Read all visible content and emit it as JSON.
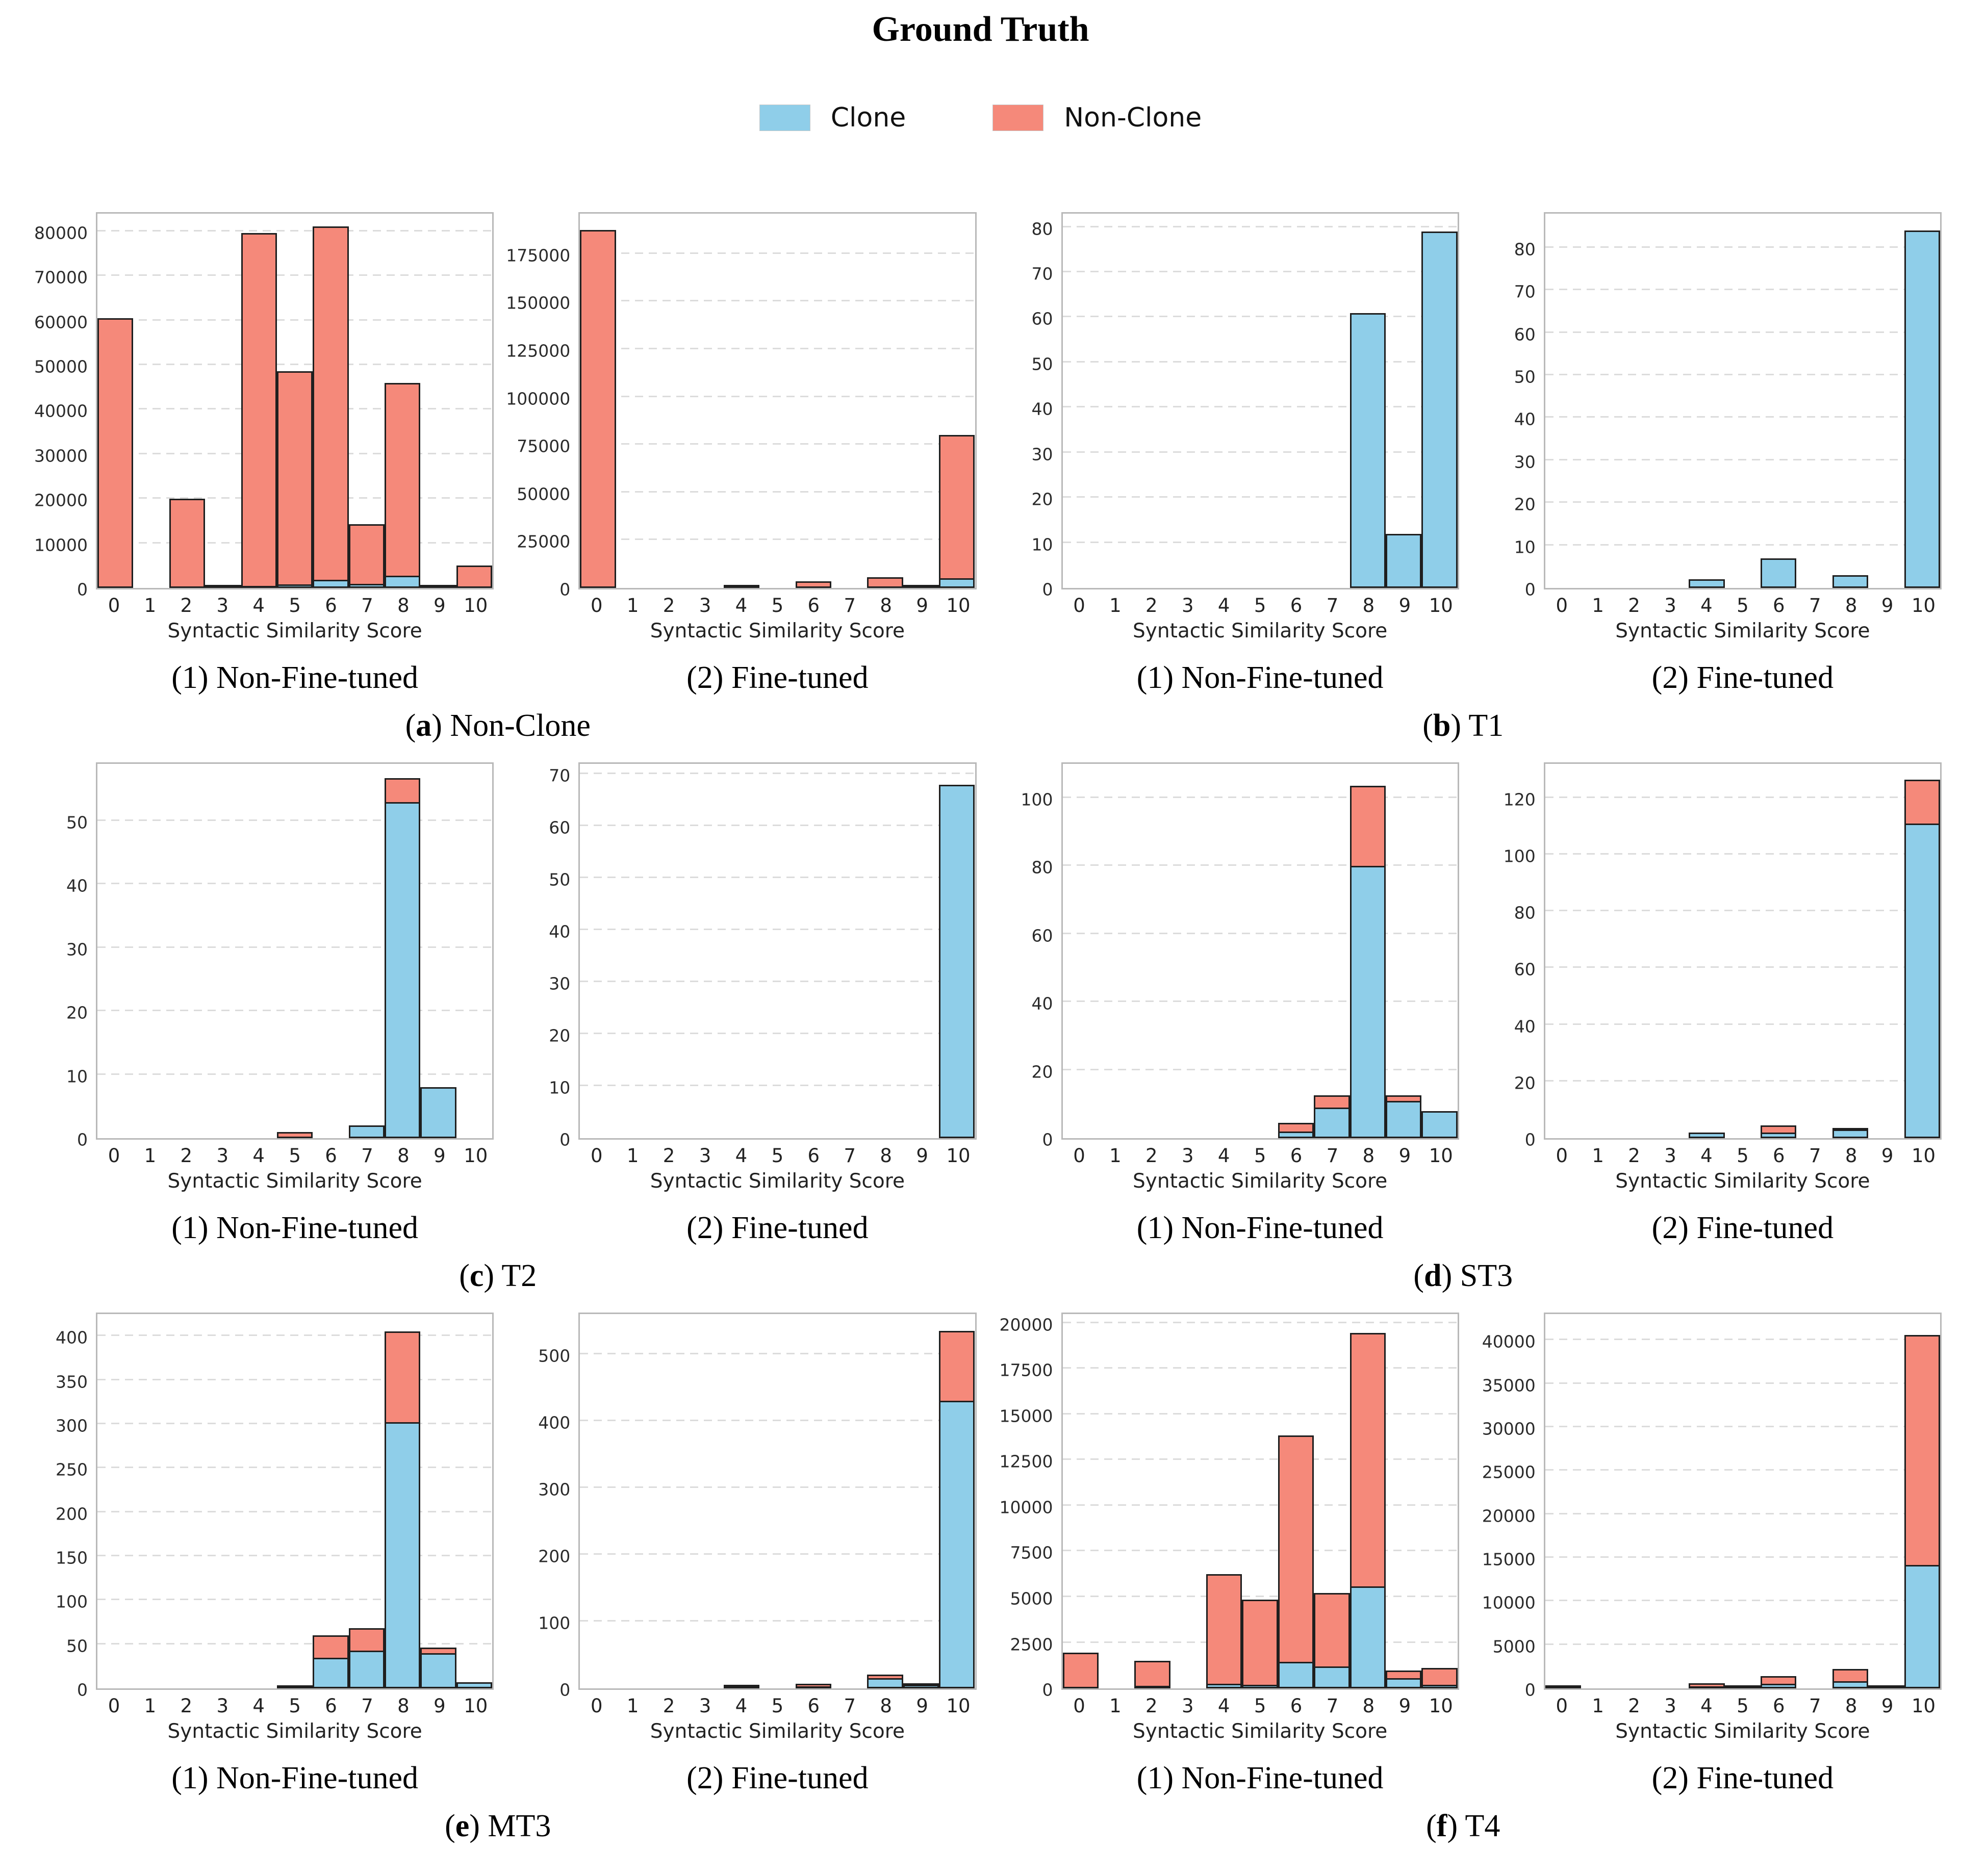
{
  "title": "Ground Truth",
  "legend": {
    "items": [
      {
        "label": "Clone",
        "color": "#8FCEE9"
      },
      {
        "label": "Non-Clone",
        "color": "#F5897A"
      }
    ]
  },
  "colors": {
    "clone": "#8FCEE9",
    "non_clone": "#F5897A",
    "bar_edge": "#1f1f1f",
    "grid": "#dcdcdc",
    "spine": "#b9b9b9"
  },
  "axis": {
    "xlabel": "Syntactic Similarity Score",
    "x_ticks": [
      "0",
      "1",
      "2",
      "3",
      "4",
      "5",
      "6",
      "7",
      "8",
      "9",
      "10"
    ]
  },
  "groups": [
    {
      "letter": "a",
      "name": "Non-Clone",
      "chart_indices": [
        0,
        1
      ]
    },
    {
      "letter": "b",
      "name": "T1",
      "chart_indices": [
        2,
        3
      ]
    },
    {
      "letter": "c",
      "name": "T2",
      "chart_indices": [
        4,
        5
      ]
    },
    {
      "letter": "d",
      "name": "ST3",
      "chart_indices": [
        6,
        7
      ]
    },
    {
      "letter": "e",
      "name": "MT3",
      "chart_indices": [
        8,
        9
      ]
    },
    {
      "letter": "f",
      "name": "T4",
      "chart_indices": [
        10,
        11
      ]
    }
  ],
  "chart_data": [
    {
      "id": "a1",
      "caption": "(1) Non-Fine-tuned",
      "group": "(a) Non-Clone",
      "type": "bar",
      "stacked": true,
      "categories": [
        "0",
        "1",
        "2",
        "3",
        "4",
        "5",
        "6",
        "7",
        "8",
        "9",
        "10"
      ],
      "series": [
        {
          "name": "Clone",
          "values": [
            0,
            0,
            0,
            0,
            500,
            800,
            1800,
            900,
            2800,
            0,
            0
          ]
        },
        {
          "name": "Non-Clone",
          "values": [
            60500,
            0,
            20000,
            150,
            79500,
            48200,
            79700,
            13800,
            43500,
            400,
            5000
          ]
        }
      ],
      "ylim": [
        0,
        84000
      ],
      "yticks": [
        0,
        10000,
        20000,
        30000,
        40000,
        50000,
        60000,
        70000,
        80000
      ]
    },
    {
      "id": "a2",
      "caption": "(2) Fine-tuned",
      "group": "(a) Non-Clone",
      "type": "bar",
      "stacked": true,
      "categories": [
        "0",
        "1",
        "2",
        "3",
        "4",
        "5",
        "6",
        "7",
        "8",
        "9",
        "10"
      ],
      "series": [
        {
          "name": "Clone",
          "values": [
            0,
            0,
            0,
            0,
            0,
            0,
            0,
            0,
            0,
            0,
            5000
          ]
        },
        {
          "name": "Non-Clone",
          "values": [
            187500,
            0,
            0,
            0,
            1500,
            0,
            3500,
            0,
            5500,
            700,
            76000
          ]
        }
      ],
      "ylim": [
        0,
        196000
      ],
      "yticks": [
        0,
        25000,
        50000,
        75000,
        100000,
        125000,
        150000,
        175000
      ]
    },
    {
      "id": "b1",
      "caption": "(1) Non-Fine-tuned",
      "group": "(b) T1",
      "type": "bar",
      "stacked": true,
      "categories": [
        "0",
        "1",
        "2",
        "3",
        "4",
        "5",
        "6",
        "7",
        "8",
        "9",
        "10"
      ],
      "series": [
        {
          "name": "Clone",
          "values": [
            0,
            0,
            0,
            0,
            0,
            0,
            0,
            0,
            61,
            12,
            79
          ]
        },
        {
          "name": "Non-Clone",
          "values": [
            0,
            0,
            0,
            0,
            0,
            0,
            0,
            0,
            0,
            0,
            0
          ]
        }
      ],
      "ylim": [
        0,
        83
      ],
      "yticks": [
        0,
        10,
        20,
        30,
        40,
        50,
        60,
        70,
        80
      ]
    },
    {
      "id": "b2",
      "caption": "(2) Fine-tuned",
      "group": "(b) T1",
      "type": "bar",
      "stacked": true,
      "categories": [
        "0",
        "1",
        "2",
        "3",
        "4",
        "5",
        "6",
        "7",
        "8",
        "9",
        "10"
      ],
      "series": [
        {
          "name": "Clone",
          "values": [
            0,
            0,
            0,
            0,
            2,
            0,
            7,
            0,
            3,
            0,
            84
          ]
        },
        {
          "name": "Non-Clone",
          "values": [
            0,
            0,
            0,
            0,
            0,
            0,
            0,
            0,
            0,
            0,
            0
          ]
        }
      ],
      "ylim": [
        0,
        88
      ],
      "yticks": [
        0,
        10,
        20,
        30,
        40,
        50,
        60,
        70,
        80
      ]
    },
    {
      "id": "c1",
      "caption": "(1) Non-Fine-tuned",
      "group": "(c) T2",
      "type": "bar",
      "stacked": true,
      "categories": [
        "0",
        "1",
        "2",
        "3",
        "4",
        "5",
        "6",
        "7",
        "8",
        "9",
        "10"
      ],
      "series": [
        {
          "name": "Clone",
          "values": [
            0,
            0,
            0,
            0,
            0,
            0,
            0,
            2,
            53,
            8,
            0
          ]
        },
        {
          "name": "Non-Clone",
          "values": [
            0,
            0,
            0,
            0,
            0,
            1,
            0,
            0,
            4,
            0,
            0
          ]
        }
      ],
      "ylim": [
        0,
        59
      ],
      "yticks": [
        0,
        10,
        20,
        30,
        40,
        50
      ]
    },
    {
      "id": "c2",
      "caption": "(2) Fine-tuned",
      "group": "(c) T2",
      "type": "bar",
      "stacked": true,
      "categories": [
        "0",
        "1",
        "2",
        "3",
        "4",
        "5",
        "6",
        "7",
        "8",
        "9",
        "10"
      ],
      "series": [
        {
          "name": "Clone",
          "values": [
            0,
            0,
            0,
            0,
            0,
            0,
            0,
            0,
            0,
            0,
            68
          ]
        },
        {
          "name": "Non-Clone",
          "values": [
            0,
            0,
            0,
            0,
            0,
            0,
            0,
            0,
            0,
            0,
            0
          ]
        }
      ],
      "ylim": [
        0,
        72
      ],
      "yticks": [
        0,
        10,
        20,
        30,
        40,
        50,
        60,
        70
      ]
    },
    {
      "id": "d1",
      "caption": "(1) Non-Fine-tuned",
      "group": "(d) ST3",
      "type": "bar",
      "stacked": true,
      "categories": [
        "0",
        "1",
        "2",
        "3",
        "4",
        "5",
        "6",
        "7",
        "8",
        "9",
        "10"
      ],
      "series": [
        {
          "name": "Clone",
          "values": [
            0,
            0,
            0,
            0,
            0,
            0,
            2,
            9,
            80,
            11,
            8
          ]
        },
        {
          "name": "Non-Clone",
          "values": [
            0,
            0,
            0,
            0,
            0,
            0,
            3,
            4,
            24,
            2,
            0
          ]
        }
      ],
      "ylim": [
        0,
        110
      ],
      "yticks": [
        0,
        20,
        40,
        60,
        80,
        100
      ]
    },
    {
      "id": "d2",
      "caption": "(2) Fine-tuned",
      "group": "(d) ST3",
      "type": "bar",
      "stacked": true,
      "categories": [
        "0",
        "1",
        "2",
        "3",
        "4",
        "5",
        "6",
        "7",
        "8",
        "9",
        "10"
      ],
      "series": [
        {
          "name": "Clone",
          "values": [
            0,
            0,
            0,
            0,
            2,
            0,
            2,
            0,
            3,
            0,
            111
          ]
        },
        {
          "name": "Non-Clone",
          "values": [
            0,
            0,
            0,
            0,
            0,
            0,
            3,
            0,
            1,
            0,
            16
          ]
        }
      ],
      "ylim": [
        0,
        132
      ],
      "yticks": [
        0,
        20,
        40,
        60,
        80,
        100,
        120
      ]
    },
    {
      "id": "e1",
      "caption": "(1) Non-Fine-tuned",
      "group": "(e) MT3",
      "type": "bar",
      "stacked": true,
      "categories": [
        "0",
        "1",
        "2",
        "3",
        "4",
        "5",
        "6",
        "7",
        "8",
        "9",
        "10"
      ],
      "series": [
        {
          "name": "Clone",
          "values": [
            0,
            0,
            0,
            0,
            0,
            0,
            35,
            43,
            302,
            40,
            7
          ]
        },
        {
          "name": "Non-Clone",
          "values": [
            0,
            0,
            0,
            0,
            0,
            2,
            27,
            27,
            105,
            8,
            0
          ]
        }
      ],
      "ylim": [
        0,
        425
      ],
      "yticks": [
        0,
        50,
        100,
        150,
        200,
        250,
        300,
        350,
        400
      ]
    },
    {
      "id": "e2",
      "caption": "(2) Fine-tuned",
      "group": "(e) MT3",
      "type": "bar",
      "stacked": true,
      "categories": [
        "0",
        "1",
        "2",
        "3",
        "4",
        "5",
        "6",
        "7",
        "8",
        "9",
        "10"
      ],
      "series": [
        {
          "name": "Clone",
          "values": [
            0,
            0,
            0,
            0,
            1,
            0,
            1,
            0,
            15,
            5,
            430
          ]
        },
        {
          "name": "Non-Clone",
          "values": [
            0,
            0,
            0,
            0,
            1,
            0,
            6,
            0,
            8,
            3,
            107
          ]
        }
      ],
      "ylim": [
        0,
        560
      ],
      "yticks": [
        0,
        100,
        200,
        300,
        400,
        500
      ]
    },
    {
      "id": "f1",
      "caption": "(1) Non-Fine-tuned",
      "group": "(f) T4",
      "type": "bar",
      "stacked": true,
      "categories": [
        "0",
        "1",
        "2",
        "3",
        "4",
        "5",
        "6",
        "7",
        "8",
        "9",
        "10"
      ],
      "series": [
        {
          "name": "Clone",
          "values": [
            0,
            0,
            150,
            0,
            250,
            200,
            1450,
            1200,
            5600,
            550,
            200
          ]
        },
        {
          "name": "Non-Clone",
          "values": [
            1950,
            0,
            1450,
            0,
            6100,
            4750,
            12500,
            4100,
            13950,
            500,
            1000
          ]
        }
      ],
      "ylim": [
        0,
        20500
      ],
      "yticks": [
        0,
        2500,
        5000,
        7500,
        10000,
        12500,
        15000,
        17500,
        20000
      ]
    },
    {
      "id": "f2",
      "caption": "(2) Fine-tuned",
      "group": "(f) T4",
      "type": "bar",
      "stacked": true,
      "categories": [
        "0",
        "1",
        "2",
        "3",
        "4",
        "5",
        "6",
        "7",
        "8",
        "9",
        "10"
      ],
      "series": [
        {
          "name": "Clone",
          "values": [
            0,
            0,
            0,
            0,
            100,
            0,
            500,
            0,
            800,
            0,
            14200
          ]
        },
        {
          "name": "Non-Clone",
          "values": [
            100,
            0,
            0,
            0,
            500,
            100,
            1100,
            0,
            1600,
            200,
            26600
          ]
        }
      ],
      "ylim": [
        0,
        43000
      ],
      "yticks": [
        0,
        5000,
        10000,
        15000,
        20000,
        25000,
        30000,
        35000,
        40000
      ]
    }
  ]
}
